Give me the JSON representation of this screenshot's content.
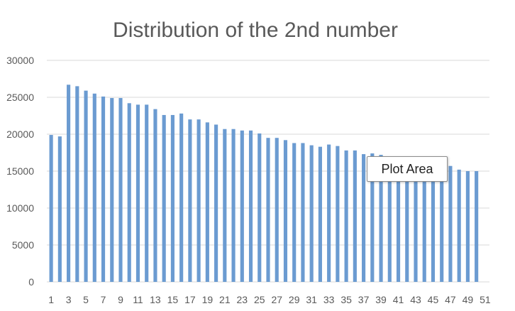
{
  "colors": {
    "bar": "#6b9bd1",
    "gridline": "#d9d9d9",
    "axis_text": "#595959",
    "title": "#595959"
  },
  "tooltip": {
    "text": "Plot Area"
  },
  "chart_data": {
    "type": "bar",
    "title": "Distribution of the 2nd number",
    "xlabel": "",
    "ylabel": "",
    "ylim": [
      0,
      30000
    ],
    "yticks": [
      0,
      5000,
      10000,
      15000,
      20000,
      25000,
      30000
    ],
    "grid": true,
    "legend": "none",
    "categories": [
      "1",
      "2",
      "3",
      "4",
      "5",
      "6",
      "7",
      "8",
      "9",
      "10",
      "11",
      "12",
      "13",
      "14",
      "15",
      "16",
      "17",
      "18",
      "19",
      "20",
      "21",
      "22",
      "23",
      "24",
      "25",
      "26",
      "27",
      "28",
      "29",
      "30",
      "31",
      "32",
      "33",
      "34",
      "35",
      "36",
      "37",
      "38",
      "39",
      "40",
      "41",
      "42",
      "43",
      "44",
      "45",
      "46",
      "47",
      "48",
      "49",
      "50",
      "51"
    ],
    "xtick_labels": [
      "1",
      "3",
      "5",
      "7",
      "9",
      "11",
      "13",
      "15",
      "17",
      "19",
      "21",
      "23",
      "25",
      "27",
      "29",
      "31",
      "33",
      "35",
      "37",
      "39",
      "41",
      "43",
      "45",
      "47",
      "49",
      "51"
    ],
    "values": [
      19900,
      19700,
      26700,
      26500,
      25900,
      25500,
      25100,
      24900,
      24900,
      24200,
      24000,
      24000,
      23400,
      22600,
      22600,
      22800,
      22000,
      22000,
      21600,
      21300,
      20700,
      20700,
      20500,
      20500,
      20100,
      19500,
      19500,
      19200,
      18800,
      18800,
      18500,
      18300,
      18600,
      18400,
      17800,
      17800,
      17300,
      17400,
      17200,
      16400,
      16200,
      16000,
      15700,
      15600,
      15800,
      15700,
      15700,
      15200,
      15000,
      15000,
      0
    ]
  }
}
